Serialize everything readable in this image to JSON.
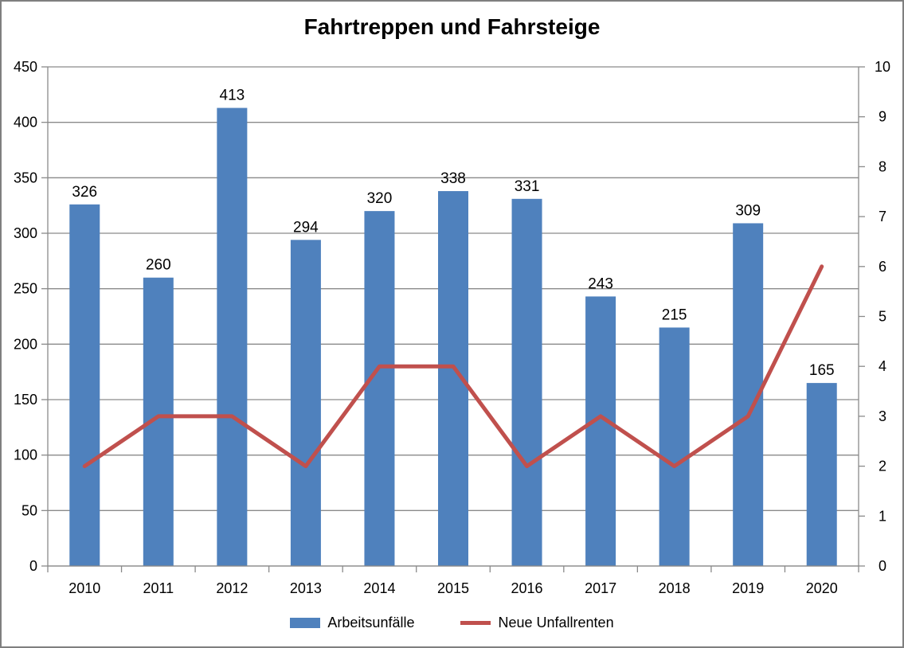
{
  "chart_data": {
    "type": "bar+line combo",
    "title": "Fahrtreppen und Fahrsteige",
    "categories": [
      "2010",
      "2011",
      "2012",
      "2013",
      "2014",
      "2015",
      "2016",
      "2017",
      "2018",
      "2019",
      "2020"
    ],
    "series": [
      {
        "name": "Arbeitsunfälle",
        "type": "bar",
        "axis": "left",
        "color": "#4F81BD",
        "values": [
          326,
          260,
          413,
          294,
          320,
          338,
          331,
          243,
          215,
          309,
          165
        ]
      },
      {
        "name": "Neue Unfallrenten",
        "type": "line",
        "axis": "right",
        "color": "#C0504D",
        "values": [
          2,
          3,
          3,
          2,
          4,
          4,
          2,
          3,
          2,
          3,
          6
        ]
      }
    ],
    "left_axis": {
      "min": 0,
      "max": 450,
      "step": 50,
      "tick_labels": [
        "0",
        "50",
        "100",
        "150",
        "200",
        "250",
        "300",
        "350",
        "400",
        "450"
      ]
    },
    "right_axis": {
      "min": 0,
      "max": 10,
      "step": 1,
      "tick_labels": [
        "0",
        "1",
        "2",
        "3",
        "4",
        "5",
        "6",
        "7",
        "8",
        "9",
        "10"
      ]
    },
    "grid": true,
    "gridline_color": "#8A8A8A",
    "axis_color": "#8A8A8A",
    "data_labels": true,
    "legend_position": "bottom",
    "frame_border_color": "#7F7F7F"
  }
}
